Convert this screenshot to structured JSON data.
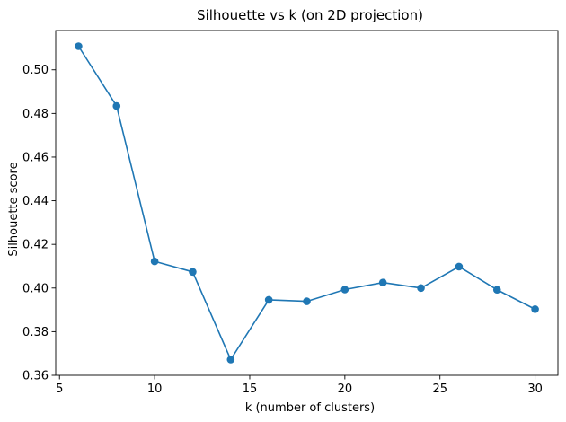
{
  "chart_data": {
    "type": "line",
    "title": "Silhouette vs k (on 2D projection)",
    "xlabel": "k (number of clusters)",
    "ylabel": "Silhouette score",
    "x": [
      6,
      8,
      10,
      12,
      14,
      16,
      18,
      20,
      22,
      24,
      26,
      28,
      30
    ],
    "series": [
      {
        "values": [
          0.5108,
          0.4834,
          0.4122,
          0.4074,
          0.3672,
          0.3946,
          0.3939,
          0.3993,
          0.4025,
          0.4,
          0.4098,
          0.3992,
          0.3903
        ],
        "color": "#1f77b4",
        "marker": "circle"
      }
    ],
    "xlim": [
      4.8,
      31.2
    ],
    "ylim": [
      0.36,
      0.518
    ],
    "xticks": [
      5,
      10,
      15,
      20,
      25,
      30
    ],
    "yticks": [
      0.36,
      0.38,
      0.4,
      0.42,
      0.44,
      0.46,
      0.48,
      0.5
    ],
    "xtick_labels": [
      "5",
      "10",
      "15",
      "20",
      "25",
      "30"
    ],
    "ytick_labels": [
      "0.36",
      "0.38",
      "0.40",
      "0.42",
      "0.44",
      "0.46",
      "0.48",
      "0.50"
    ],
    "grid": false,
    "legend": "none"
  }
}
